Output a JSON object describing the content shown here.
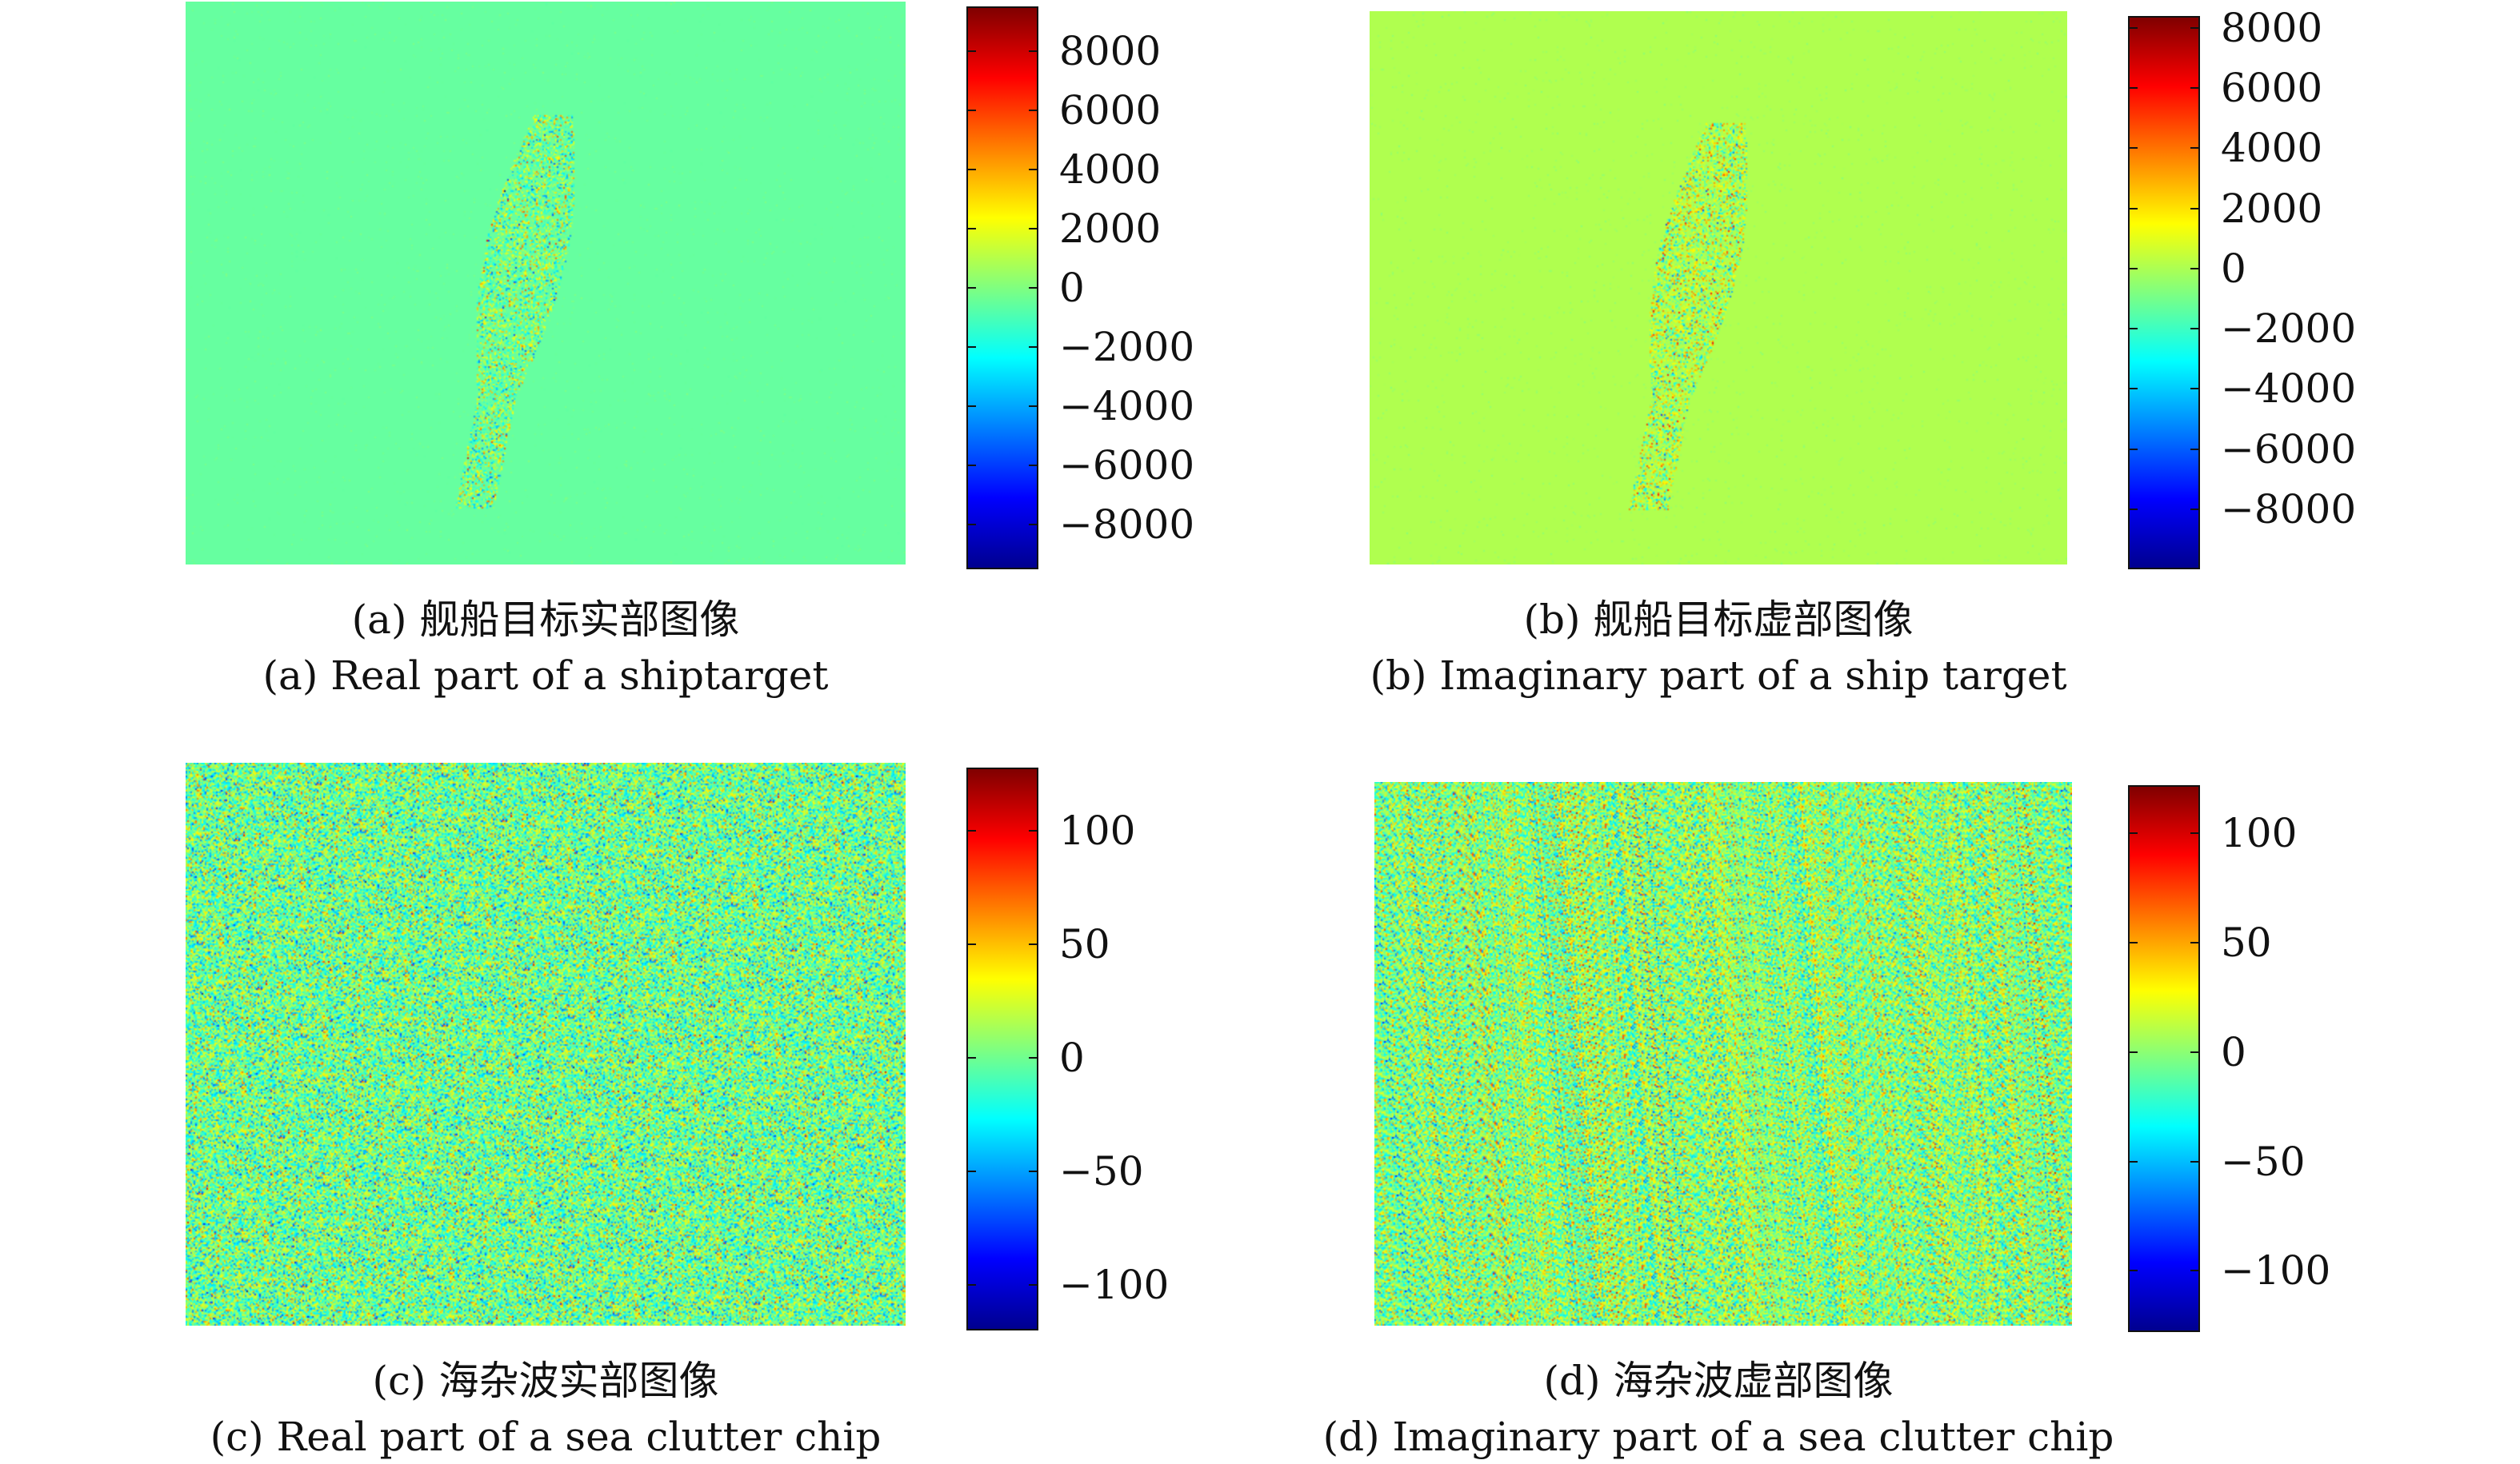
{
  "chart_data": [
    {
      "id": "a",
      "type": "heatmap",
      "pattern": "ship",
      "background_color": "#66ffa0",
      "colorbar": {
        "colormap": "jet",
        "range": [
          -9500,
          9500
        ],
        "ticks": [
          8000,
          6000,
          4000,
          2000,
          0,
          -2000,
          -4000,
          -6000,
          -8000
        ],
        "tick_labels": [
          "8000",
          "6000",
          "4000",
          "2000",
          "0",
          "−2000",
          "−4000",
          "−6000",
          "−8000"
        ]
      },
      "caption_cn": "(a) 舰船目标实部图像",
      "caption_en": "(a) Real part of a shiptarget"
    },
    {
      "id": "b",
      "type": "heatmap",
      "pattern": "ship",
      "background_color": "#b0ff4f",
      "colorbar": {
        "colormap": "jet",
        "range": [
          -10000,
          8400
        ],
        "ticks": [
          8000,
          6000,
          4000,
          2000,
          0,
          -2000,
          -4000,
          -6000,
          -8000
        ],
        "tick_labels": [
          "8000",
          "6000",
          "4000",
          "2000",
          "0",
          "−2000",
          "−4000",
          "−6000",
          "−8000"
        ]
      },
      "caption_cn": "(b) 舰船目标虚部图像",
      "caption_en": "(b) Imaginary part of a ship target"
    },
    {
      "id": "c",
      "type": "heatmap",
      "pattern": "noise",
      "background_color": "#7fffa0",
      "colorbar": {
        "colormap": "jet",
        "range": [
          -120,
          128
        ],
        "ticks": [
          100,
          50,
          0,
          -50,
          -100
        ],
        "tick_labels": [
          "100",
          "50",
          "0",
          "−50",
          "−100"
        ]
      },
      "caption_cn": "(c) 海杂波实部图像",
      "caption_en": "(c) Real part of a sea clutter chip"
    },
    {
      "id": "d",
      "type": "heatmap",
      "pattern": "noise",
      "background_color": "#7fffa0",
      "colorbar": {
        "colormap": "jet",
        "range": [
          -128,
          122
        ],
        "ticks": [
          100,
          50,
          0,
          -50,
          -100
        ],
        "tick_labels": [
          "100",
          "50",
          "0",
          "−50",
          "−100"
        ]
      },
      "caption_cn": "(d) 海杂波虚部图像",
      "caption_en": "(d) Imaginary part of a sea clutter chip"
    }
  ]
}
